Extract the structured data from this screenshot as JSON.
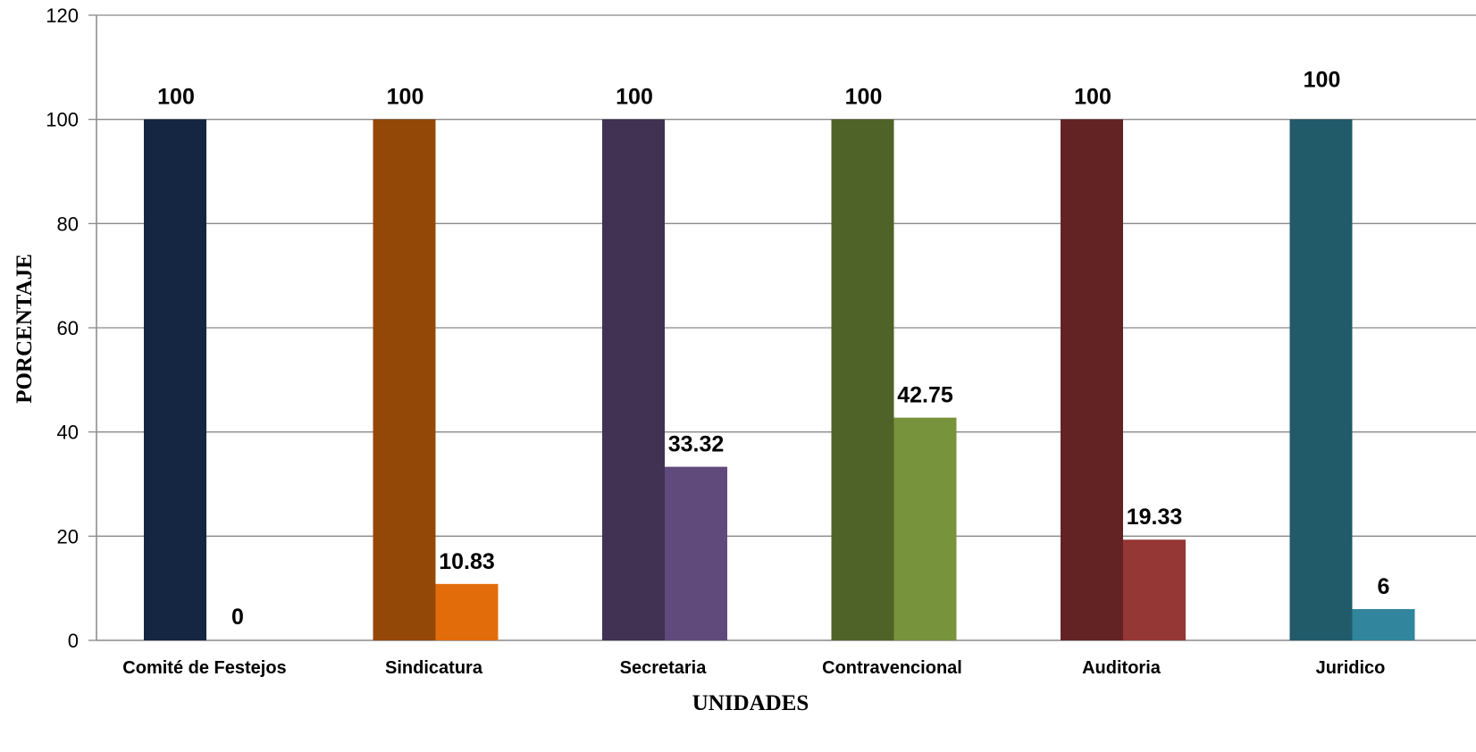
{
  "chart_data": {
    "type": "bar",
    "title": "",
    "xlabel": "UNIDADES",
    "ylabel": "PORCENTAJE",
    "ylim": [
      0,
      120
    ],
    "yticks": [
      0,
      20,
      40,
      60,
      80,
      100,
      120
    ],
    "grid": true,
    "legend": "none",
    "categories": [
      "Comité de Festejos",
      "Sindicatura",
      "Secretaria",
      "Contravencional",
      "Auditoria",
      "Juridico"
    ],
    "series": [
      {
        "values": [
          100,
          100,
          100,
          100,
          100,
          100
        ],
        "labels": [
          "100",
          "100",
          "100",
          "100",
          "100",
          "100"
        ]
      },
      {
        "values": [
          0,
          10.83,
          33.32,
          42.75,
          19.33,
          6
        ],
        "labels": [
          "0",
          "10.83",
          "33.32",
          "42.75",
          "19.33",
          "6"
        ]
      }
    ],
    "colors": {
      "series_1": [
        "#142641",
        "#944808",
        "#413152",
        "#4f6328",
        "#632325",
        "#215a69"
      ],
      "series_2": [
        "#ffffff",
        "#e36c0a",
        "#604a7b",
        "#77933c",
        "#953735",
        "#31859c"
      ],
      "grid": "#898989"
    }
  }
}
